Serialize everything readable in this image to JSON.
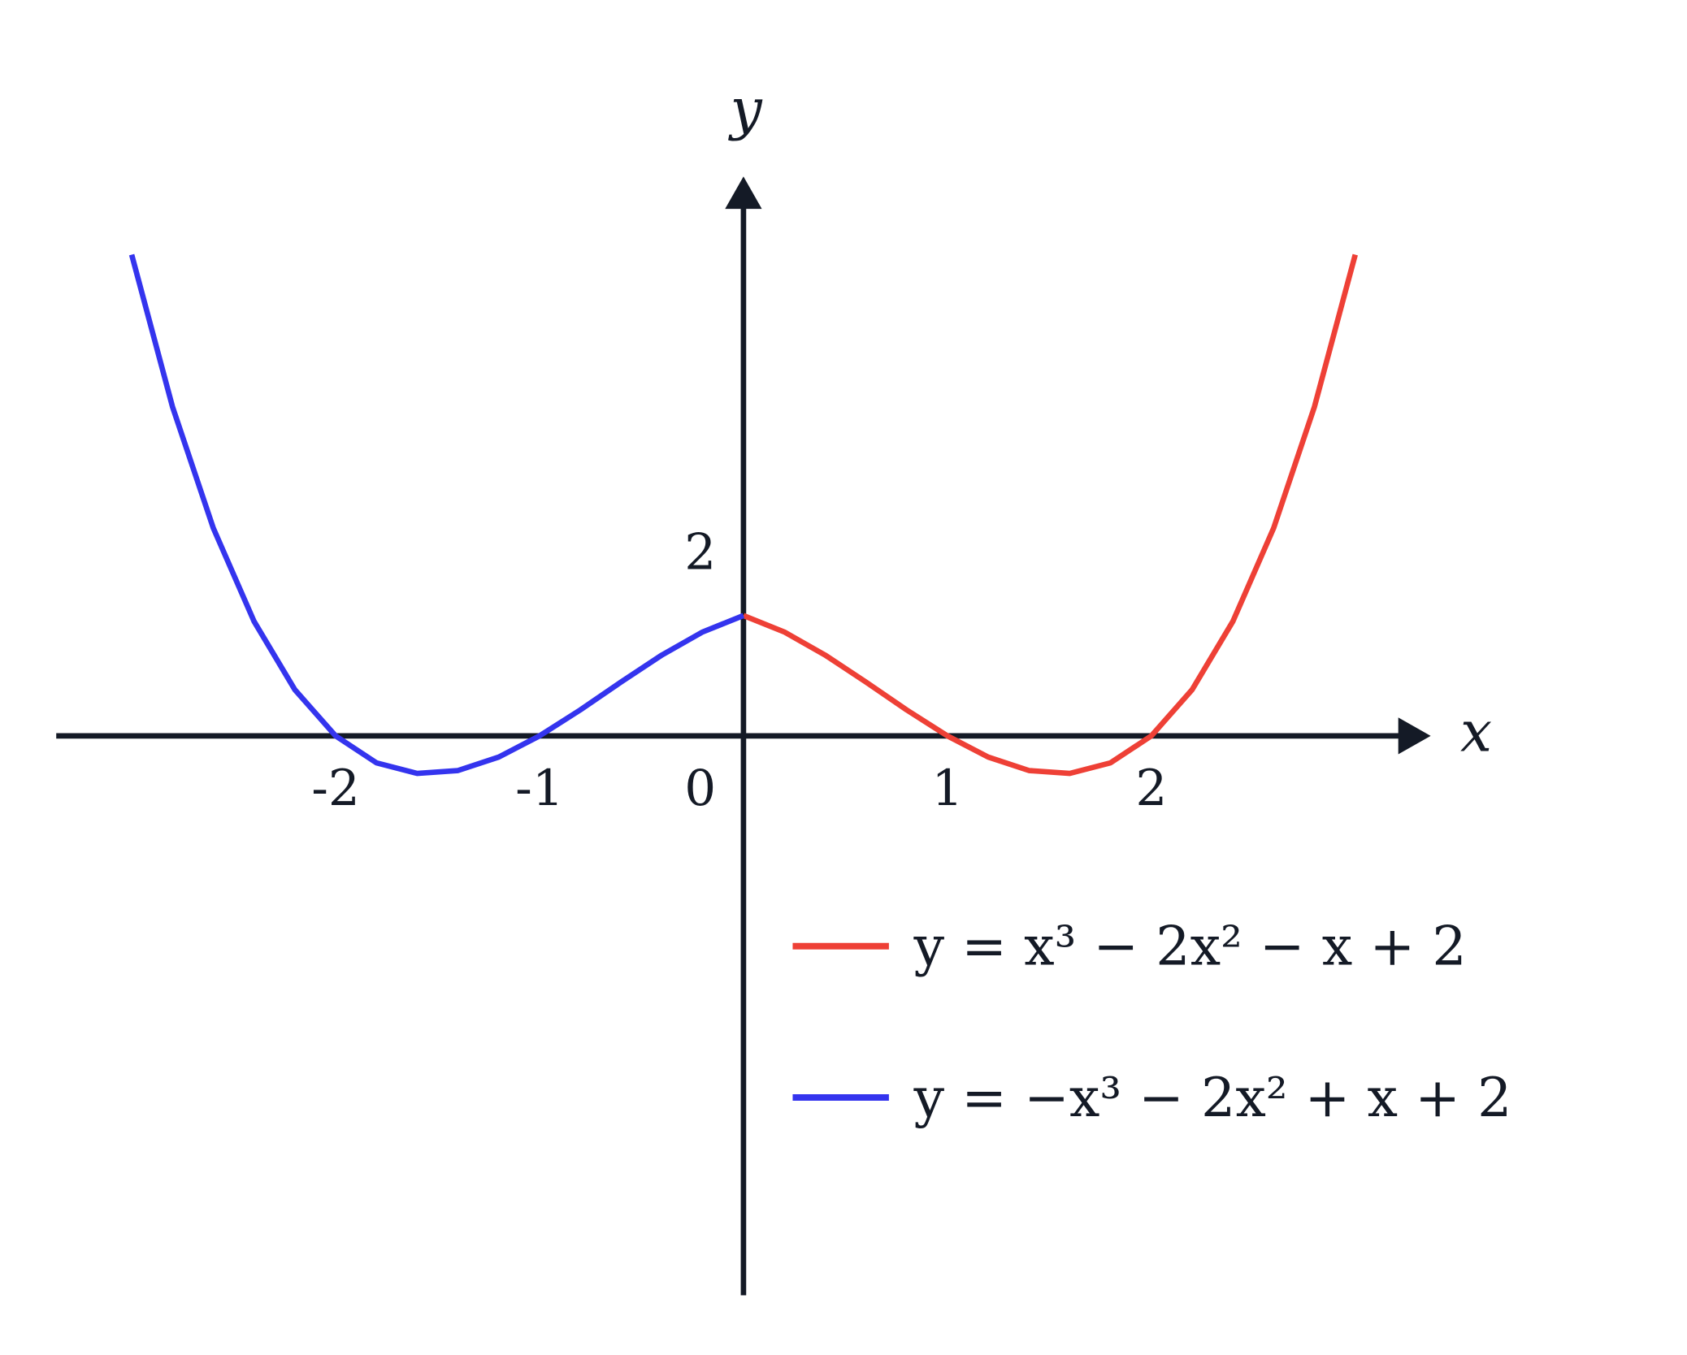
{
  "chart_data": {
    "type": "line",
    "x": [
      -3,
      -2.8,
      -2.6,
      -2.4,
      -2.2,
      -2,
      -1.8,
      -1.6,
      -1.4,
      -1.2,
      -1,
      -0.8,
      -0.6,
      -0.4,
      -0.2,
      0,
      0.2,
      0.4,
      0.6,
      0.8,
      1,
      1.2,
      1.4,
      1.6,
      1.8,
      2,
      2.2,
      2.4,
      2.6,
      2.8,
      3
    ],
    "series": [
      {
        "name": "y = x³ − 2x² − x + 2",
        "color": "#ee4036",
        "values": [
          null,
          null,
          null,
          null,
          null,
          null,
          null,
          null,
          null,
          null,
          null,
          null,
          null,
          null,
          null,
          2,
          1.728,
          1.344,
          0.896,
          0.432,
          0,
          -0.352,
          -0.576,
          -0.624,
          -0.448,
          0,
          0.768,
          1.904,
          3.456,
          5.472,
          8
        ]
      },
      {
        "name": "y = −x³ − 2x² + x + 2",
        "color": "#3434ee",
        "values": [
          8,
          5.472,
          3.456,
          1.904,
          0.768,
          0,
          -0.448,
          -0.624,
          -0.576,
          -0.352,
          0,
          0.432,
          0.896,
          1.344,
          1.728,
          2,
          null,
          null,
          null,
          null,
          null,
          null,
          null,
          null,
          null,
          null,
          null,
          null,
          null,
          null,
          null
        ]
      }
    ],
    "x_label": "x",
    "y_label": "y",
    "xlim": [
      -3.37,
      3.37
    ],
    "ylim": [
      -9.3,
      9.3
    ],
    "xticks": [
      -2,
      -1,
      0,
      1,
      2
    ],
    "yticks": [
      2
    ]
  }
}
